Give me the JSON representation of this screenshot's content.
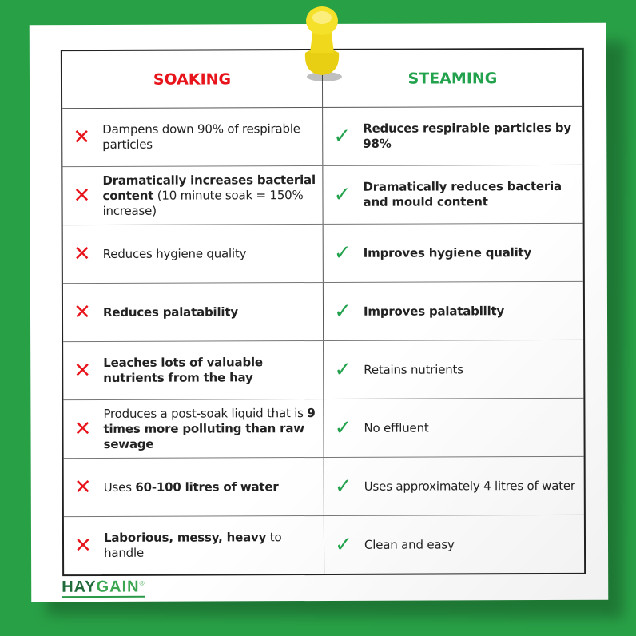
{
  "header": {
    "soaking": "SOAKING",
    "steaming": "STEAMING"
  },
  "colors": {
    "background": "#28a046",
    "soaking": "#e8141b",
    "steaming": "#23a24d",
    "pin": "#f2dc1e"
  },
  "icons": {
    "soaking": "cross-icon",
    "steaming": "check-icon",
    "pin": "push-pin-icon"
  },
  "rows": [
    {
      "soak": [
        {
          "t": "Dampens down 90% of respirable particles",
          "b": false
        }
      ],
      "steam": [
        {
          "t": "Reduces respirable particles by 98%",
          "b": true
        }
      ]
    },
    {
      "soak": [
        {
          "t": "Dramatically increases bacterial content",
          "b": true
        },
        {
          "t": " (10 minute soak = 150% increase)",
          "b": false
        }
      ],
      "steam": [
        {
          "t": "Dramatically reduces bacteria and mould content",
          "b": true
        }
      ]
    },
    {
      "soak": [
        {
          "t": "Reduces hygiene quality",
          "b": false
        }
      ],
      "steam": [
        {
          "t": "Improves hygiene quality",
          "b": true
        }
      ]
    },
    {
      "soak": [
        {
          "t": "Reduces palatability",
          "b": true
        }
      ],
      "steam": [
        {
          "t": "Improves palatability",
          "b": true
        }
      ]
    },
    {
      "soak": [
        {
          "t": "Leaches lots of valuable nutrients from the hay",
          "b": true
        }
      ],
      "steam": [
        {
          "t": "Retains nutrients",
          "b": false
        }
      ]
    },
    {
      "soak": [
        {
          "t": "Produces a post-soak liquid that is ",
          "b": false
        },
        {
          "t": "9 times more polluting than raw sewage",
          "b": true
        }
      ],
      "steam": [
        {
          "t": "No effluent",
          "b": false
        }
      ]
    },
    {
      "soak": [
        {
          "t": "Uses ",
          "b": false
        },
        {
          "t": "60-100 litres of water",
          "b": true
        }
      ],
      "steam": [
        {
          "t": "Uses approximately 4 litres of water",
          "b": false
        }
      ]
    },
    {
      "soak": [
        {
          "t": "Laborious, messy, heavy",
          "b": true
        },
        {
          "t": " to handle",
          "b": false
        }
      ],
      "steam": [
        {
          "t": "Clean and easy",
          "b": false
        }
      ]
    }
  ],
  "logo": {
    "part1": "HAY",
    "part2": "GAIN",
    "mark": "®"
  }
}
